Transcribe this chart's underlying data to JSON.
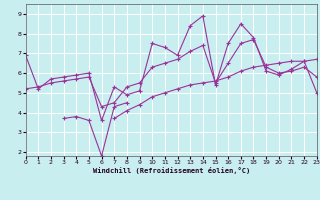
{
  "xlabel": "Windchill (Refroidissement éolien,°C)",
  "background_color": "#c8eef0",
  "line_color": "#993399",
  "xlim": [
    0,
    23
  ],
  "ylim": [
    1.8,
    9.5
  ],
  "xticks": [
    0,
    1,
    2,
    3,
    4,
    5,
    6,
    7,
    8,
    9,
    10,
    11,
    12,
    13,
    14,
    15,
    16,
    17,
    18,
    19,
    20,
    21,
    22,
    23
  ],
  "yticks": [
    2,
    3,
    4,
    5,
    6,
    7,
    8,
    9
  ],
  "line1_y": [
    6.9,
    5.2,
    5.7,
    5.8,
    5.9,
    6.0,
    3.6,
    5.3,
    4.9,
    5.1,
    7.5,
    7.3,
    6.9,
    8.4,
    8.9,
    5.4,
    7.5,
    8.5,
    7.8,
    6.1,
    5.9,
    6.2,
    6.6,
    5.0
  ],
  "line2_y": [
    5.2,
    5.3,
    5.5,
    5.6,
    5.7,
    5.8,
    4.3,
    4.5,
    5.3,
    5.5,
    6.3,
    6.5,
    6.7,
    7.1,
    7.4,
    5.5,
    6.5,
    7.5,
    7.7,
    6.3,
    6.0,
    6.1,
    6.3,
    5.8
  ],
  "line3_y": [
    null,
    null,
    null,
    3.7,
    3.8,
    3.6,
    1.8,
    4.3,
    4.5,
    null,
    null,
    null,
    null,
    null,
    null,
    null,
    null,
    null,
    null,
    null,
    null,
    null,
    null,
    null
  ],
  "line4_y": [
    null,
    null,
    null,
    null,
    null,
    null,
    null,
    3.7,
    4.1,
    4.4,
    4.8,
    5.0,
    5.2,
    5.4,
    5.5,
    5.6,
    5.8,
    6.1,
    6.3,
    6.4,
    6.5,
    6.6,
    6.6,
    6.7
  ]
}
